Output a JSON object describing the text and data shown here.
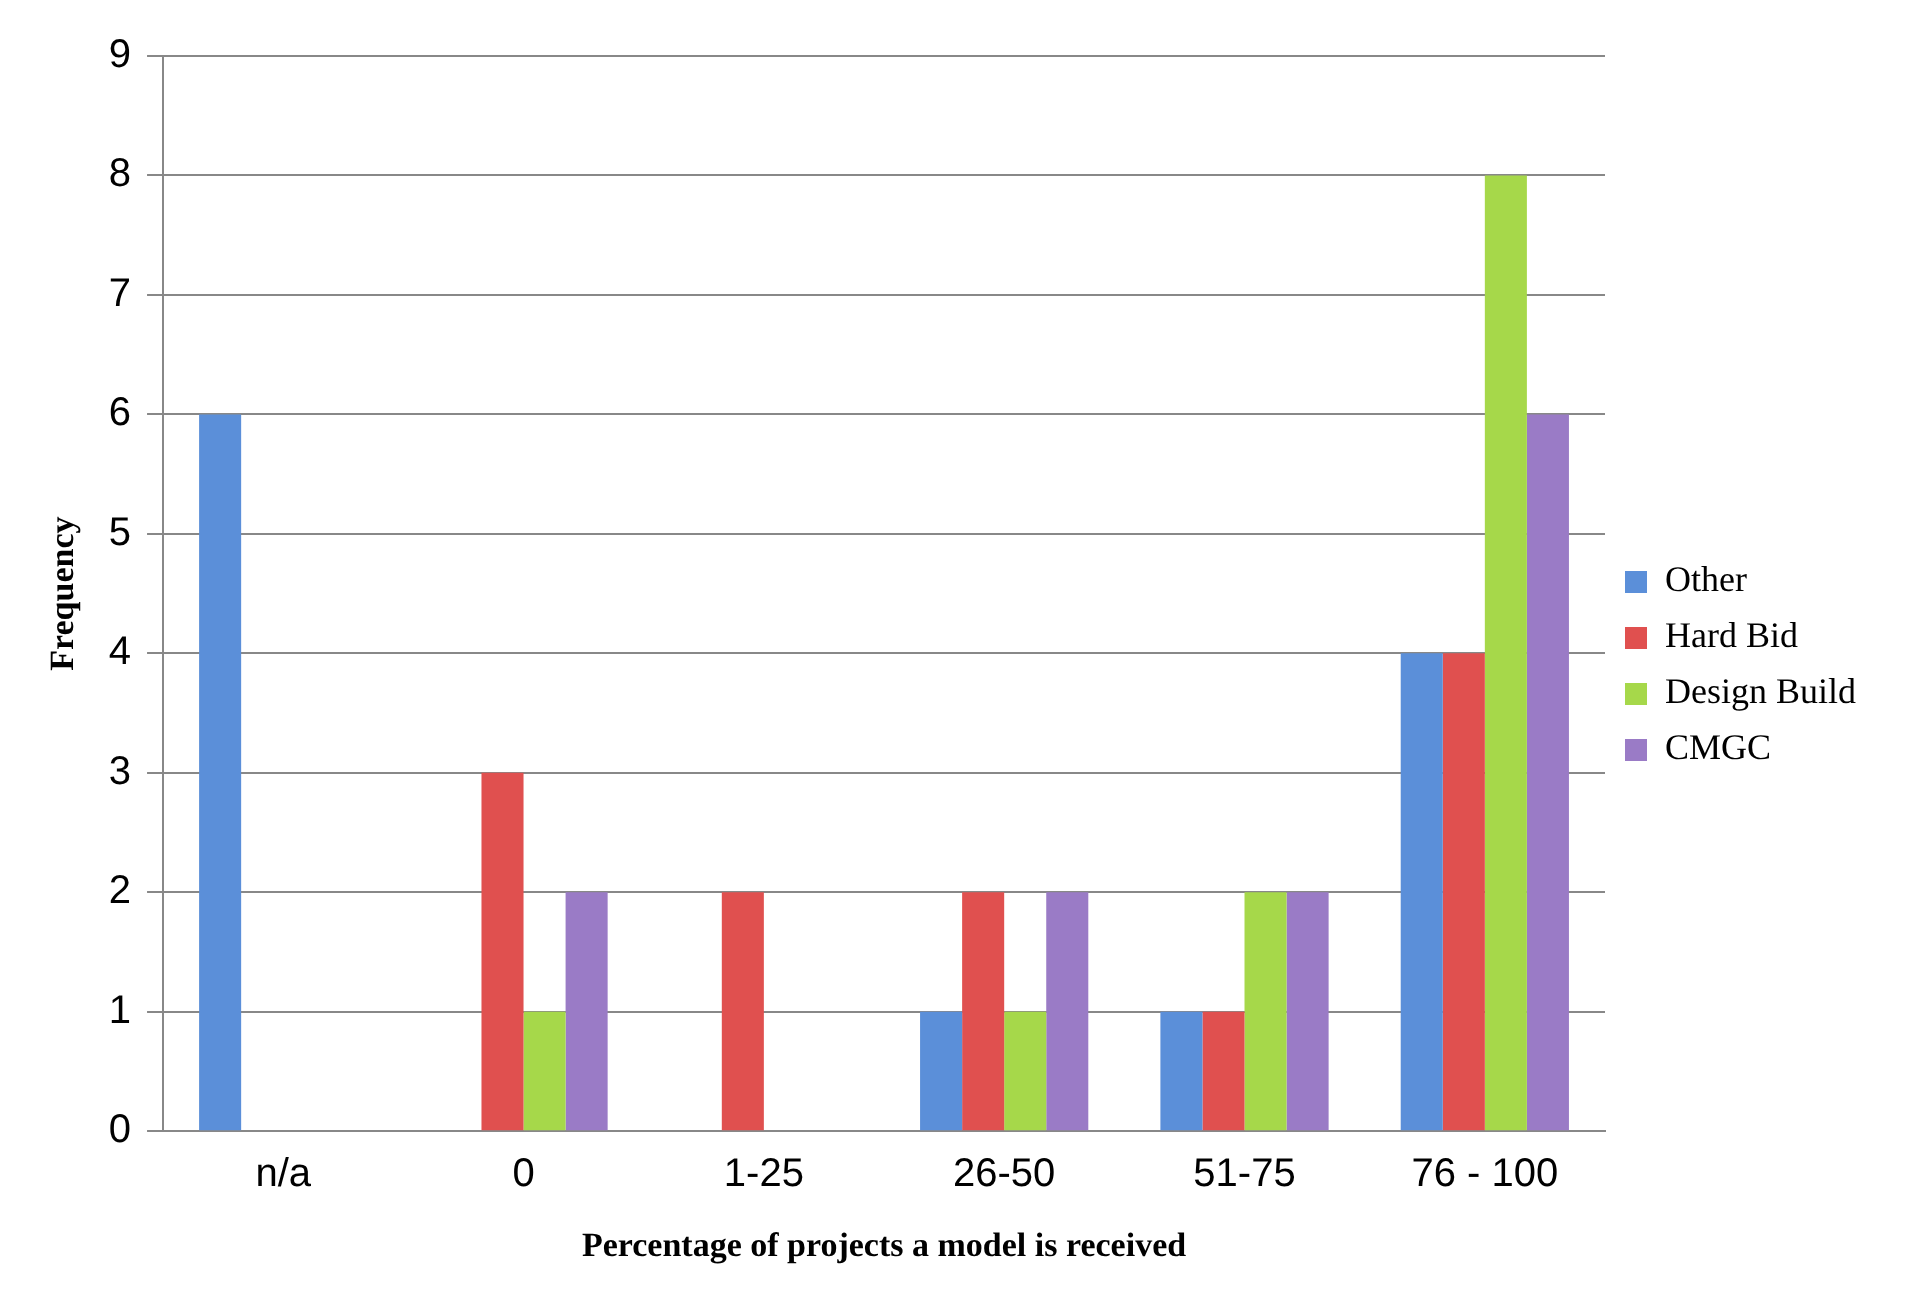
{
  "chart_data": {
    "type": "bar",
    "xlabel": "Percentage of projects a model is received",
    "ylabel": "Frequency",
    "categories": [
      "n/a",
      "0",
      "1-25",
      "26-50",
      "51-75",
      "76 - 100"
    ],
    "series": [
      {
        "name": "Other",
        "color": "#5b8fd9",
        "values": [
          6,
          0,
          0,
          1,
          1,
          4
        ]
      },
      {
        "name": "Hard Bid",
        "color": "#e0504f",
        "values": [
          0,
          3,
          2,
          2,
          1,
          4
        ]
      },
      {
        "name": "Design Build",
        "color": "#a6d84a",
        "values": [
          0,
          1,
          0,
          1,
          2,
          8
        ]
      },
      {
        "name": "CMGC",
        "color": "#9a7bc6",
        "values": [
          0,
          2,
          0,
          2,
          2,
          6
        ]
      }
    ],
    "ylim": [
      0,
      9
    ],
    "yticks": [
      0,
      1,
      2,
      3,
      4,
      5,
      6,
      7,
      8,
      9
    ],
    "grid": "y",
    "legend": "right"
  }
}
